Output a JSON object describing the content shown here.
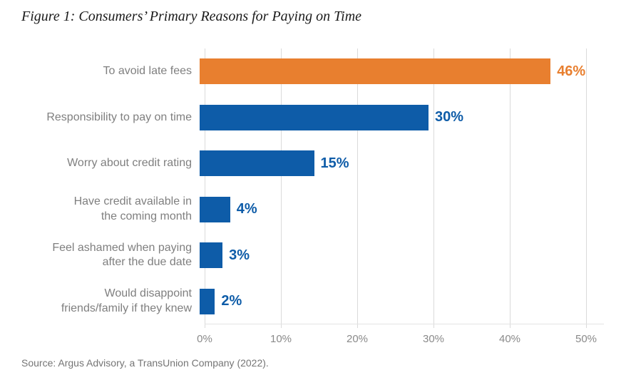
{
  "figure": {
    "title": "Figure 1: Consumers’ Primary Reasons for Paying on Time",
    "source": "Source: Argus Advisory, a TransUnion Company (2022)."
  },
  "chart_data": {
    "type": "bar",
    "orientation": "horizontal",
    "title": "Figure 1: Consumers’ Primary Reasons for Paying on Time",
    "categories": [
      "To avoid late fees",
      "Responsibility to pay on time",
      "Worry about credit rating",
      "Have credit available in\nthe coming month",
      "Feel ashamed when paying\nafter the due date",
      "Would disappoint\nfriends/family if they knew"
    ],
    "values": [
      46,
      30,
      15,
      4,
      3,
      2
    ],
    "value_labels": [
      "46%",
      "30%",
      "15%",
      "4%",
      "3%",
      "2%"
    ],
    "bar_colors": [
      "#E87F2F",
      "#0E5CA8",
      "#0E5CA8",
      "#0E5CA8",
      "#0E5CA8",
      "#0E5CA8"
    ],
    "x_ticks": [
      "0%",
      "10%",
      "20%",
      "30%",
      "40%",
      "50%"
    ],
    "xlim": [
      0,
      50
    ],
    "grid": "vertical-gridlines-on",
    "legend": "none",
    "colors": {
      "highlight_orange": "#E87F2F",
      "primary_blue": "#0E5CA8",
      "category_label_gray": "#7F7F7F",
      "axis_label_gray": "#8A8A8A",
      "gridline_gray": "#DADADA"
    }
  }
}
